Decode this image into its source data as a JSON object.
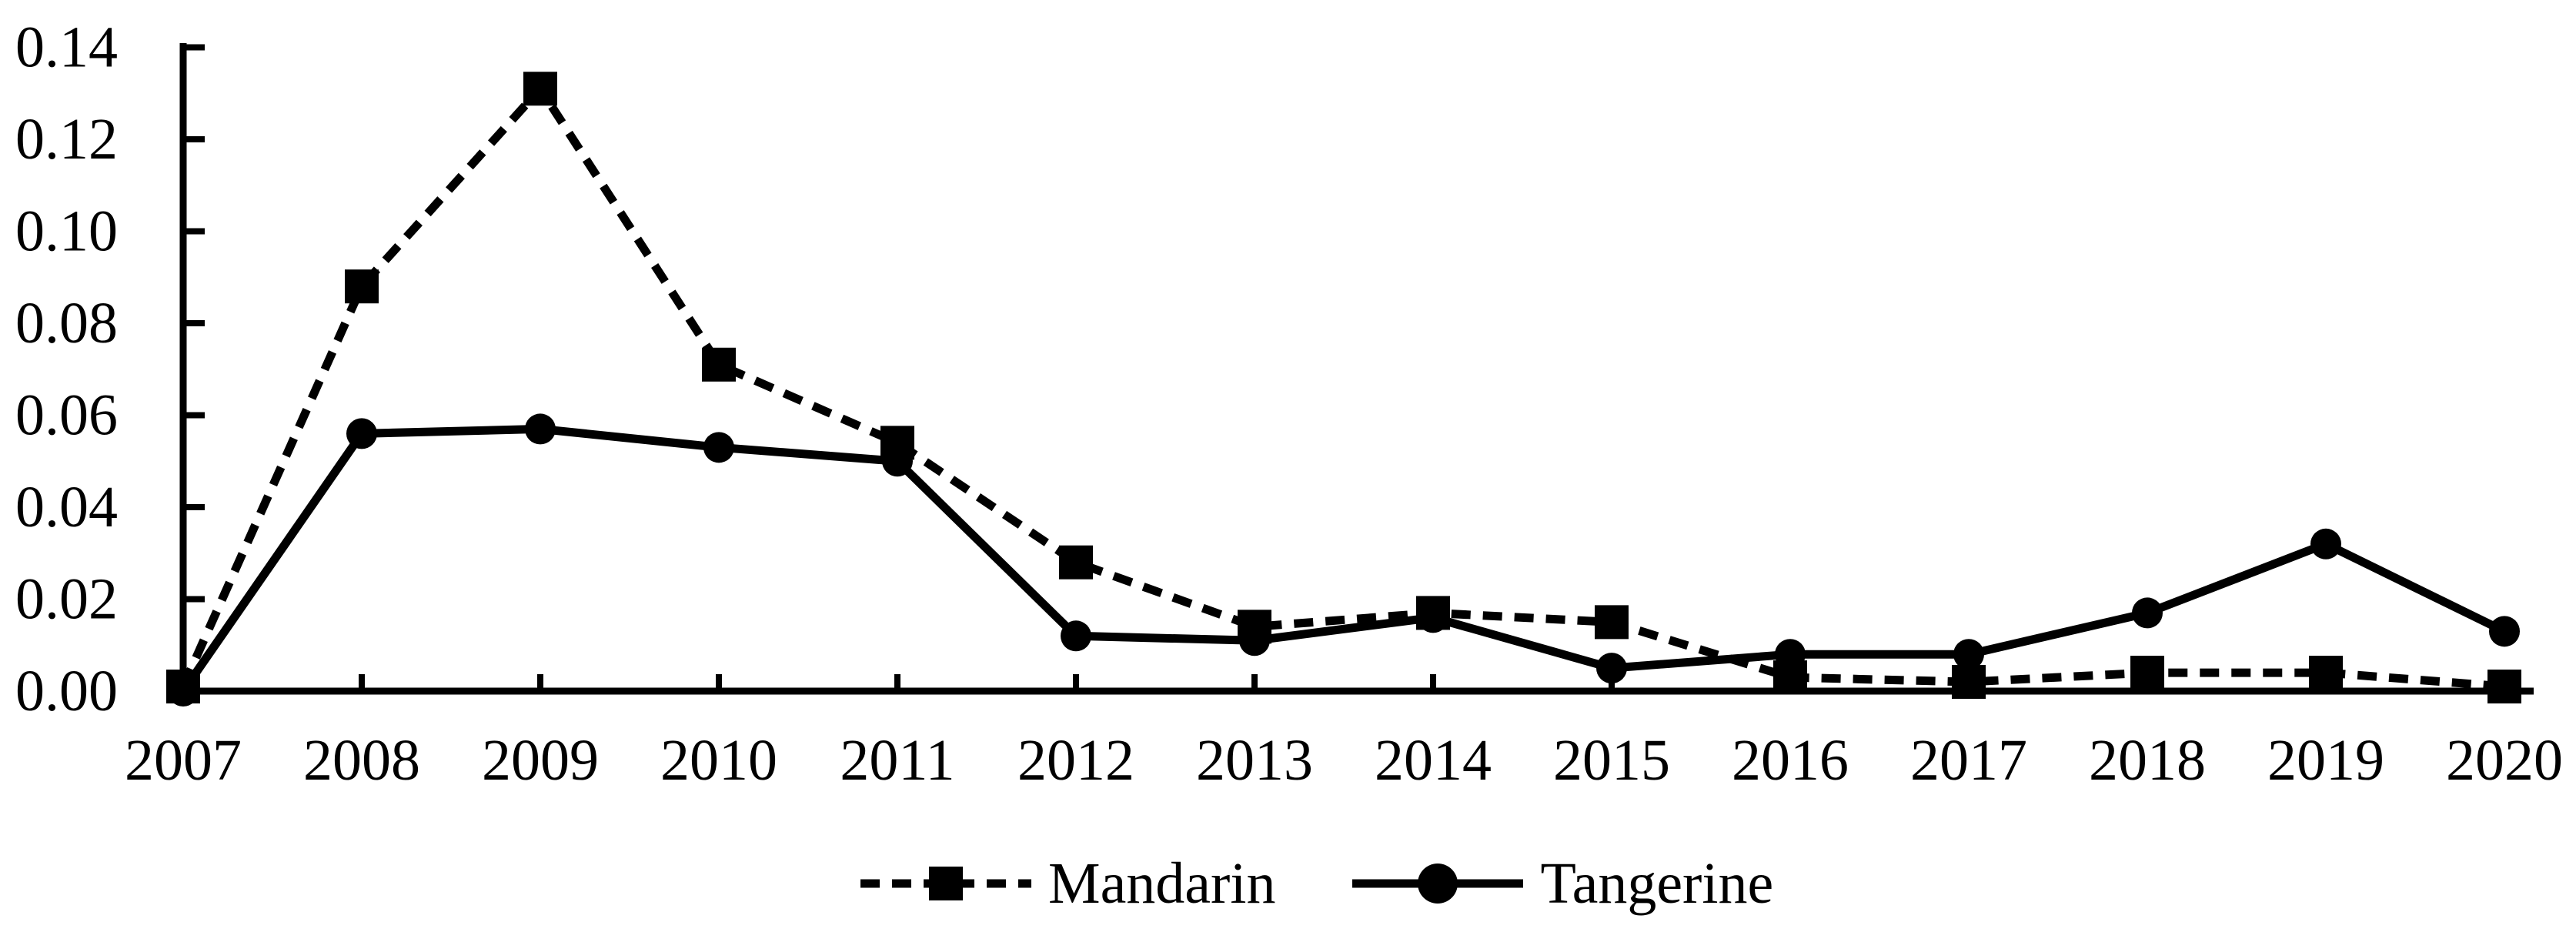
{
  "page": {
    "background": "#ffffff"
  },
  "chart_data": {
    "type": "line",
    "title": "",
    "xlabel": "",
    "ylabel": "",
    "grid": false,
    "legend_position": "bottom-center",
    "axis_color": "#000000",
    "x": [
      "2007",
      "2008",
      "2009",
      "2010",
      "2011",
      "2012",
      "2013",
      "2014",
      "2015",
      "2016",
      "2017",
      "2018",
      "2019",
      "2020"
    ],
    "y_ticks": [
      "0.00",
      "0.02",
      "0.04",
      "0.06",
      "0.08",
      "0.10",
      "0.12",
      "0.14"
    ],
    "ylim": [
      0,
      0.14
    ],
    "series": [
      {
        "name": "Mandarin",
        "style": "dashed",
        "marker": "square",
        "color": "#000000",
        "values": [
          0.001,
          0.088,
          0.131,
          0.071,
          0.054,
          0.028,
          0.014,
          0.017,
          0.015,
          0.003,
          0.002,
          0.004,
          0.004,
          0.001
        ]
      },
      {
        "name": "Tangerine",
        "style": "solid",
        "marker": "circle",
        "color": "#000000",
        "values": [
          0.0,
          0.056,
          0.057,
          0.053,
          0.05,
          0.012,
          0.011,
          0.016,
          0.005,
          0.008,
          0.008,
          0.017,
          0.032,
          0.013
        ]
      }
    ]
  }
}
